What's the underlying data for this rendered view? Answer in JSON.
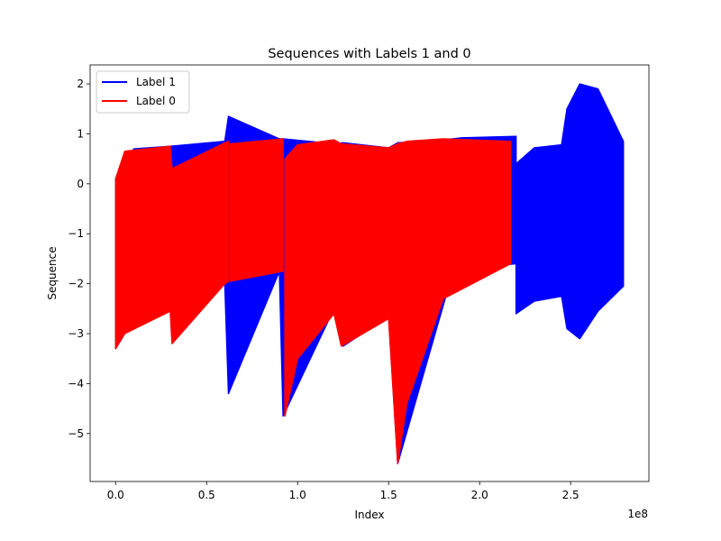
{
  "chart_data": {
    "type": "line",
    "title": "Sequences with Labels 1 and 0",
    "xlabel": "Index",
    "ylabel": "Sequence",
    "x_offset_label": "1e8",
    "xlim": [
      -0.14,
      2.93
    ],
    "ylim": [
      -5.96,
      2.38
    ],
    "x_ticks": [
      0.0,
      0.5,
      1.0,
      1.5,
      2.0,
      2.5
    ],
    "x_tick_labels": [
      "0.0",
      "0.5",
      "1.0",
      "1.5",
      "2.0",
      "2.5"
    ],
    "y_ticks": [
      -5,
      -4,
      -3,
      -2,
      -1,
      0,
      1,
      2
    ],
    "y_tick_labels": [
      "−5",
      "−4",
      "−3",
      "−2",
      "−1",
      "0",
      "1",
      "2"
    ],
    "grid": false,
    "legend_position": "top-left",
    "series": [
      {
        "name": "Label 1",
        "color": "#0000ff",
        "segments": [
          {
            "x": [
              0.0,
              0.1,
              0.3,
              0.6,
              0.62,
              0.9,
              0.92,
              1.2,
              1.25,
              1.5,
              1.55,
              1.85,
              1.9,
              2.2
            ],
            "upper": [
              0.1,
              0.7,
              0.75,
              0.85,
              1.35,
              0.9,
              0.9,
              0.8,
              0.82,
              0.72,
              0.82,
              0.9,
              0.92,
              0.95
            ],
            "lower": [
              -3.3,
              -2.7,
              -2.55,
              -2.0,
              -4.2,
              -1.75,
              -4.65,
              -2.5,
              -3.25,
              -2.65,
              -5.6,
              -1.8,
              -1.7,
              -1.6
            ]
          },
          {
            "x": [
              2.2,
              2.3,
              2.45,
              2.48,
              2.55,
              2.65,
              2.79
            ],
            "upper": [
              0.4,
              0.72,
              0.78,
              1.5,
              2.0,
              1.9,
              0.85
            ],
            "lower": [
              -2.6,
              -2.35,
              -2.25,
              -2.9,
              -3.1,
              -2.55,
              -2.05
            ]
          }
        ]
      },
      {
        "name": "Label 0",
        "color": "#ff0000",
        "segments": [
          {
            "x": [
              0.0,
              0.05,
              0.3,
              0.31,
              0.6,
              0.62
            ],
            "upper": [
              0.1,
              0.65,
              0.75,
              0.3,
              0.82,
              0.85
            ],
            "lower": [
              -3.3,
              -3.0,
              -2.55,
              -3.2,
              -2.0,
              -1.95
            ]
          },
          {
            "x": [
              0.63,
              0.92
            ],
            "upper": [
              0.8,
              0.9
            ],
            "lower": [
              -1.95,
              -1.75
            ]
          },
          {
            "x": [
              0.93,
              1.0,
              1.2,
              1.24,
              1.5,
              1.55,
              1.6,
              1.8,
              2.17
            ],
            "upper": [
              0.5,
              0.78,
              0.88,
              0.8,
              0.72,
              0.8,
              0.85,
              0.9,
              0.85
            ],
            "lower": [
              -4.65,
              -3.5,
              -2.6,
              -3.25,
              -2.7,
              -5.6,
              -4.4,
              -2.3,
              -1.6
            ]
          }
        ]
      }
    ]
  }
}
